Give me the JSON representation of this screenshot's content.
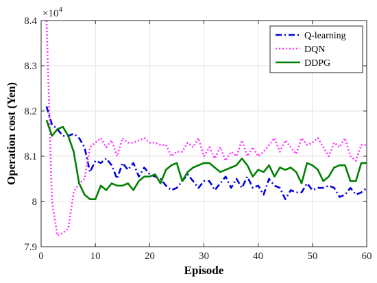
{
  "chart_data": {
    "type": "line",
    "title": "",
    "xlabel": "Episode",
    "ylabel": "Operation cost (Yen)",
    "y_multiplier": {
      "base": "10",
      "exponent": "4",
      "prefix": "×"
    },
    "xlim": [
      0,
      60
    ],
    "ylim": [
      7.9,
      8.4
    ],
    "xticks": [
      0,
      10,
      20,
      30,
      40,
      50,
      60
    ],
    "yticks": [
      7.9,
      8.0,
      8.1,
      8.2,
      8.3,
      8.4
    ],
    "xtick_labels": [
      "0",
      "10",
      "20",
      "30",
      "40",
      "50",
      "60"
    ],
    "ytick_labels": [
      "7.9",
      "8",
      "8.1",
      "8.2",
      "8.3",
      "8.4"
    ],
    "grid": true,
    "legend_position": "top-right",
    "series": [
      {
        "name": "Q-learning",
        "color": "#0000dd",
        "style": "dashdot",
        "x": [
          1,
          2,
          3,
          4,
          5,
          6,
          7,
          8,
          9,
          10,
          11,
          12,
          13,
          14,
          15,
          16,
          17,
          18,
          19,
          20,
          21,
          22,
          23,
          24,
          25,
          26,
          27,
          28,
          29,
          30,
          31,
          32,
          33,
          34,
          35,
          36,
          37,
          38,
          39,
          40,
          41,
          42,
          43,
          44,
          45,
          46,
          47,
          48,
          49,
          50,
          51,
          52,
          53,
          54,
          55,
          56,
          57,
          58,
          59,
          60
        ],
        "values": [
          8.21,
          8.17,
          8.16,
          8.145,
          8.145,
          8.15,
          8.14,
          8.12,
          8.065,
          8.09,
          8.085,
          8.095,
          8.08,
          8.05,
          8.085,
          8.07,
          8.085,
          8.055,
          8.075,
          8.06,
          8.055,
          8.05,
          8.035,
          8.025,
          8.03,
          8.045,
          8.06,
          8.045,
          8.03,
          8.045,
          8.045,
          8.025,
          8.04,
          8.055,
          8.03,
          8.05,
          8.03,
          8.055,
          8.03,
          8.035,
          8.015,
          8.05,
          8.035,
          8.03,
          8.005,
          8.025,
          8.02,
          8.02,
          8.04,
          8.025,
          8.03,
          8.03,
          8.035,
          8.03,
          8.01,
          8.015,
          8.03,
          8.015,
          8.02,
          8.03
        ]
      },
      {
        "name": "DQN",
        "color": "#ff33ff",
        "style": "dotted",
        "x": [
          1,
          2,
          3,
          4,
          5,
          6,
          7,
          8,
          9,
          10,
          11,
          12,
          13,
          14,
          15,
          16,
          17,
          18,
          19,
          20,
          21,
          22,
          23,
          24,
          25,
          26,
          27,
          28,
          29,
          30,
          31,
          32,
          33,
          34,
          35,
          36,
          37,
          38,
          39,
          40,
          41,
          42,
          43,
          44,
          45,
          46,
          47,
          48,
          49,
          50,
          51,
          52,
          53,
          54,
          55,
          56,
          57,
          58,
          59,
          60
        ],
        "values": [
          8.4,
          8.0,
          7.925,
          7.93,
          7.94,
          8.02,
          8.04,
          8.05,
          8.12,
          8.13,
          8.14,
          8.12,
          8.135,
          8.1,
          8.14,
          8.13,
          8.13,
          8.135,
          8.14,
          8.13,
          8.13,
          8.125,
          8.125,
          8.1,
          8.11,
          8.11,
          8.13,
          8.12,
          8.14,
          8.1,
          8.12,
          8.095,
          8.12,
          8.09,
          8.11,
          8.1,
          8.135,
          8.1,
          8.12,
          8.1,
          8.11,
          8.125,
          8.14,
          8.11,
          8.135,
          8.12,
          8.105,
          8.14,
          8.125,
          8.13,
          8.14,
          8.12,
          8.1,
          8.13,
          8.12,
          8.14,
          8.1,
          8.09,
          8.125,
          8.125
        ]
      },
      {
        "name": "DDPG",
        "color": "#008000",
        "style": "solid",
        "x": [
          1,
          2,
          3,
          4,
          5,
          6,
          7,
          8,
          9,
          10,
          11,
          12,
          13,
          14,
          15,
          16,
          17,
          18,
          19,
          20,
          21,
          22,
          23,
          24,
          25,
          26,
          27,
          28,
          29,
          30,
          31,
          32,
          33,
          34,
          35,
          36,
          37,
          38,
          39,
          40,
          41,
          42,
          43,
          44,
          45,
          46,
          47,
          48,
          49,
          50,
          51,
          52,
          53,
          54,
          55,
          56,
          57,
          58,
          59,
          60
        ],
        "values": [
          8.18,
          8.145,
          8.16,
          8.165,
          8.145,
          8.11,
          8.04,
          8.015,
          8.005,
          8.005,
          8.035,
          8.025,
          8.04,
          8.035,
          8.035,
          8.04,
          8.025,
          8.045,
          8.055,
          8.055,
          8.06,
          8.04,
          8.07,
          8.08,
          8.085,
          8.045,
          8.065,
          8.075,
          8.08,
          8.085,
          8.085,
          8.075,
          8.065,
          8.07,
          8.075,
          8.08,
          8.095,
          8.08,
          8.055,
          8.07,
          8.065,
          8.08,
          8.055,
          8.075,
          8.07,
          8.075,
          8.065,
          8.04,
          8.085,
          8.08,
          8.07,
          8.045,
          8.055,
          8.075,
          8.08,
          8.08,
          8.045,
          8.045,
          8.085,
          8.085
        ]
      }
    ]
  }
}
